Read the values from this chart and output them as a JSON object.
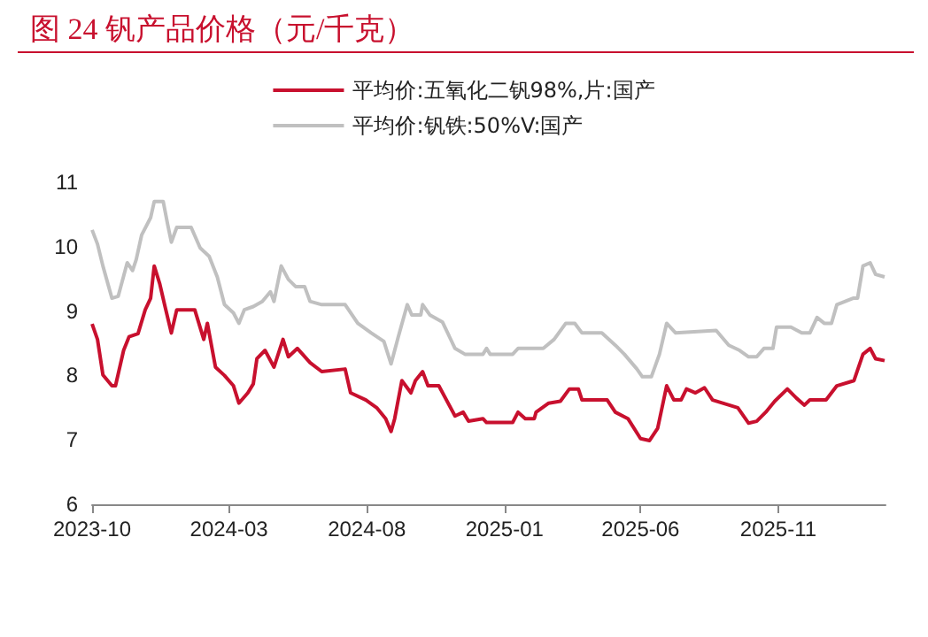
{
  "chart_data": {
    "type": "line",
    "title": "图 24 钒产品价格（元/千克）",
    "legend": "top",
    "marker": "none",
    "line_style": "solid",
    "grid": false,
    "xlim": [
      "2023-10-01",
      "2026-02-28"
    ],
    "xticks": [
      "2023-10",
      "2024-03",
      "2024-08",
      "2025-01",
      "2025-06",
      "2025-11"
    ],
    "ylim": [
      6,
      11
    ],
    "yticks": [
      6,
      7,
      8,
      9,
      10,
      11
    ],
    "series": [
      {
        "name": "平均价:五氧化二钒98%,片:国产",
        "color": "#c8102e",
        "x": [
          "2023-10-01",
          "2023-10-07",
          "2023-10-13",
          "2023-10-23",
          "2023-10-27",
          "2023-11-05",
          "2023-11-11",
          "2023-11-21",
          "2023-11-29",
          "2023-12-05",
          "2023-12-09",
          "2023-12-15",
          "2023-12-21",
          "2023-12-28",
          "2024-01-03",
          "2024-01-23",
          "2024-02-02",
          "2024-02-06",
          "2024-02-15",
          "2024-02-25",
          "2024-03-06",
          "2024-03-12",
          "2024-03-22",
          "2024-03-28",
          "2024-04-01",
          "2024-04-10",
          "2024-04-20",
          "2024-04-30",
          "2024-05-06",
          "2024-05-16",
          "2024-05-30",
          "2024-06-12",
          "2024-07-08",
          "2024-07-14",
          "2024-07-31",
          "2024-08-12",
          "2024-08-22",
          "2024-08-28",
          "2024-09-01",
          "2024-09-09",
          "2024-09-19",
          "2024-09-24",
          "2024-10-02",
          "2024-10-08",
          "2024-10-20",
          "2024-11-07",
          "2024-11-16",
          "2024-11-22",
          "2024-12-08",
          "2024-12-12",
          "2025-01-10",
          "2025-01-16",
          "2025-01-24",
          "2025-02-03",
          "2025-02-05",
          "2025-02-19",
          "2025-03-04",
          "2025-03-14",
          "2025-03-24",
          "2025-03-28",
          "2025-04-25",
          "2025-05-04",
          "2025-05-18",
          "2025-06-01",
          "2025-06-11",
          "2025-06-20",
          "2025-06-30",
          "2025-07-08",
          "2025-07-16",
          "2025-07-22",
          "2025-08-01",
          "2025-08-11",
          "2025-08-20",
          "2025-09-17",
          "2025-09-29",
          "2025-10-08",
          "2025-10-18",
          "2025-10-28",
          "2025-11-11",
          "2025-11-21",
          "2025-11-30",
          "2025-12-06",
          "2025-12-24",
          "2026-01-05",
          "2026-01-24",
          "2026-02-03",
          "2026-02-11",
          "2026-02-17",
          "2026-02-27"
        ],
        "values": [
          8.8,
          8.56,
          8.01,
          7.84,
          7.84,
          8.39,
          8.6,
          8.65,
          9.02,
          9.2,
          9.7,
          9.43,
          9.07,
          8.66,
          9.02,
          9.02,
          8.56,
          8.81,
          8.13,
          8.0,
          7.84,
          7.57,
          7.73,
          7.87,
          8.26,
          8.39,
          8.13,
          8.56,
          8.29,
          8.42,
          8.2,
          8.06,
          8.1,
          7.73,
          7.62,
          7.5,
          7.33,
          7.13,
          7.33,
          7.92,
          7.73,
          7.92,
          8.06,
          7.84,
          7.84,
          7.37,
          7.43,
          7.29,
          7.33,
          7.27,
          7.27,
          7.43,
          7.33,
          7.33,
          7.43,
          7.57,
          7.6,
          7.79,
          7.79,
          7.62,
          7.62,
          7.43,
          7.33,
          7.02,
          6.99,
          7.18,
          7.84,
          7.62,
          7.62,
          7.79,
          7.73,
          7.81,
          7.62,
          7.5,
          7.26,
          7.29,
          7.43,
          7.6,
          7.79,
          7.65,
          7.54,
          7.62,
          7.62,
          7.84,
          7.92,
          8.33,
          8.42,
          8.26,
          8.23
        ]
      },
      {
        "name": "平均价:钒铁:50%V:国产",
        "color": "#c0c0c0",
        "x": [
          "2023-10-01",
          "2023-10-07",
          "2023-10-13",
          "2023-10-23",
          "2023-10-30",
          "2023-11-09",
          "2023-11-15",
          "2023-11-19",
          "2023-11-25",
          "2023-12-05",
          "2023-12-09",
          "2023-12-19",
          "2023-12-24",
          "2023-12-28",
          "2024-01-03",
          "2024-01-19",
          "2024-01-29",
          "2024-02-08",
          "2024-02-17",
          "2024-02-25",
          "2024-03-06",
          "2024-03-12",
          "2024-03-18",
          "2024-03-28",
          "2024-04-07",
          "2024-04-16",
          "2024-04-20",
          "2024-04-28",
          "2024-05-06",
          "2024-05-14",
          "2024-05-24",
          "2024-05-30",
          "2024-06-12",
          "2024-07-08",
          "2024-07-22",
          "2024-08-06",
          "2024-08-20",
          "2024-08-28",
          "2024-09-05",
          "2024-09-15",
          "2024-09-20",
          "2024-09-30",
          "2024-10-02",
          "2024-10-10",
          "2024-10-24",
          "2024-11-07",
          "2024-11-18",
          "2024-12-08",
          "2024-12-12",
          "2024-12-16",
          "2025-01-10",
          "2025-01-16",
          "2025-02-13",
          "2025-02-25",
          "2025-03-10",
          "2025-03-20",
          "2025-03-28",
          "2025-04-19",
          "2025-05-04",
          "2025-05-14",
          "2025-05-28",
          "2025-06-03",
          "2025-06-13",
          "2025-06-22",
          "2025-06-30",
          "2025-07-10",
          "2025-08-24",
          "2025-09-07",
          "2025-09-19",
          "2025-09-29",
          "2025-10-08",
          "2025-10-16",
          "2025-10-26",
          "2025-10-30",
          "2025-11-15",
          "2025-11-27",
          "2025-12-06",
          "2025-12-14",
          "2025-12-22",
          "2025-12-30",
          "2026-01-05",
          "2026-01-23",
          "2026-01-28",
          "2026-02-03",
          "2026-02-11",
          "2026-02-17",
          "2026-02-27"
        ],
        "values": [
          10.26,
          10.04,
          9.7,
          9.2,
          9.23,
          9.75,
          9.63,
          9.8,
          10.18,
          10.45,
          10.7,
          10.7,
          10.34,
          10.07,
          10.3,
          10.3,
          9.98,
          9.85,
          9.53,
          9.1,
          8.97,
          8.81,
          9.02,
          9.07,
          9.15,
          9.3,
          9.15,
          9.7,
          9.49,
          9.38,
          9.38,
          9.15,
          9.1,
          9.1,
          8.81,
          8.66,
          8.53,
          8.18,
          8.6,
          9.1,
          8.94,
          8.94,
          9.1,
          8.94,
          8.83,
          8.42,
          8.33,
          8.33,
          8.42,
          8.33,
          8.33,
          8.42,
          8.42,
          8.56,
          8.81,
          8.81,
          8.66,
          8.66,
          8.47,
          8.33,
          8.1,
          7.98,
          7.98,
          8.33,
          8.81,
          8.66,
          8.7,
          8.47,
          8.39,
          8.29,
          8.29,
          8.42,
          8.42,
          8.75,
          8.75,
          8.66,
          8.66,
          8.9,
          8.81,
          8.81,
          9.1,
          9.2,
          9.2,
          9.7,
          9.75,
          9.57,
          9.53
        ]
      }
    ]
  }
}
